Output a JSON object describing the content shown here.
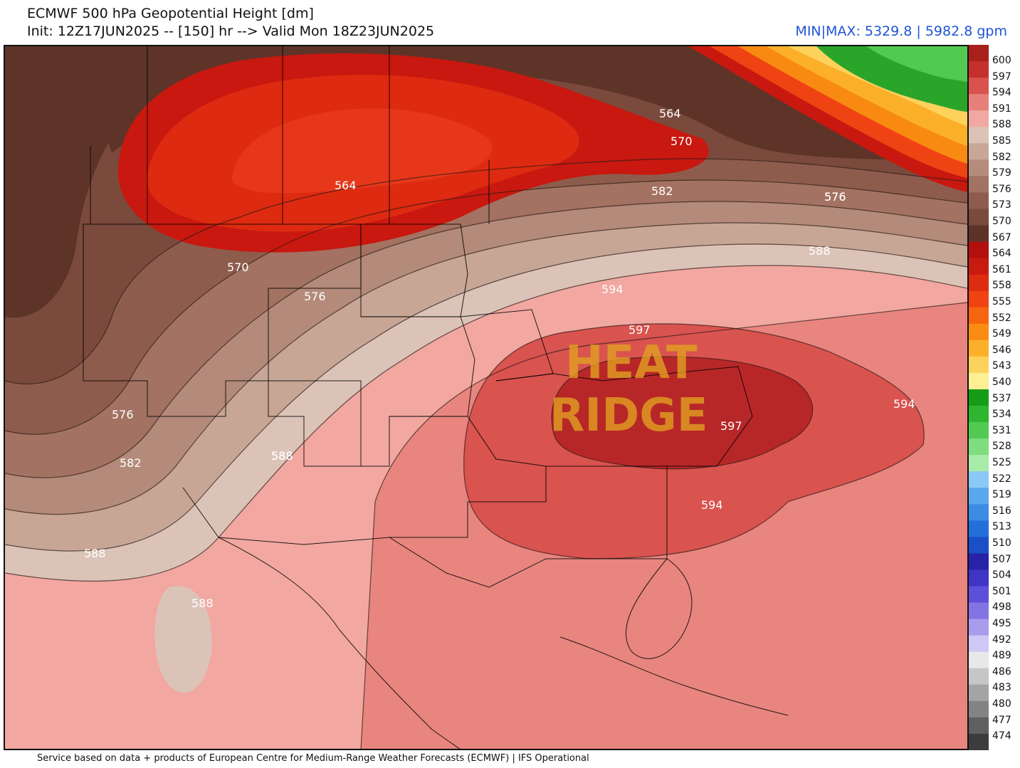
{
  "header": {
    "title": "ECMWF 500 hPa Geopotential Height [dm]",
    "subtitle": "Init: 12Z17JUN2025 -- [150] hr --> Valid Mon 18Z23JUN2025",
    "minmax": "MIN|MAX: 5329.8 | 5982.8 gpm"
  },
  "footer": "Service based on data + products of European Centre for Medium-Range Weather Forecasts (ECMWF) | IFS Operational",
  "overlay": {
    "line1": "HEAT",
    "line2": "RIDGE"
  },
  "colorbar": {
    "labels": [
      "600",
      "597",
      "594",
      "591",
      "588",
      "585",
      "582",
      "579",
      "576",
      "573",
      "570",
      "567",
      "564",
      "561",
      "558",
      "555",
      "552",
      "549",
      "546",
      "543",
      "540",
      "537",
      "534",
      "531",
      "528",
      "525",
      "522",
      "519",
      "516",
      "513",
      "510",
      "507",
      "504",
      "501",
      "498",
      "495",
      "492",
      "489",
      "486",
      "483",
      "480",
      "477",
      "474"
    ],
    "colors": [
      "#a8201c",
      "#c3302d",
      "#d8524e",
      "#e7807a",
      "#f1a8a2",
      "#dcc3b8",
      "#c8a797",
      "#b58b7b",
      "#a27262",
      "#8e5c4d",
      "#7a4a3c",
      "#5c3328",
      "#b30f0f",
      "#c81a10",
      "#dd2c10",
      "#f04313",
      "#f6650f",
      "#fa8c12",
      "#fcb02a",
      "#fdd25c",
      "#fdef94",
      "#169c16",
      "#2fb52f",
      "#52ca52",
      "#7edd7e",
      "#a9ecaa",
      "#8cc8f5",
      "#5aa8ee",
      "#3c8ce6",
      "#246fd9",
      "#1b4fc7",
      "#2822a6",
      "#3f34c4",
      "#5e4fd8",
      "#8474e3",
      "#a99cec",
      "#cfc7f5",
      "#e8e8e8",
      "#c6c6c6",
      "#a4a4a4",
      "#838383",
      "#5f5f5f",
      "#3c3c3c"
    ]
  },
  "contour_labels": [
    "564",
    "564",
    "570",
    "570",
    "576",
    "576",
    "582",
    "576",
    "582",
    "576",
    "588",
    "588",
    "588",
    "588",
    "588",
    "594",
    "597",
    "594",
    "597",
    "594"
  ],
  "map_colors": {
    "dm564": "#c8180f",
    "dm561": "#dd2a10",
    "dm567": "#5e3428",
    "dm570": "#7a4a3c",
    "dm573": "#8e5c4d",
    "dm576": "#a37262",
    "dm579": "#b48a7a",
    "dm582": "#c7a696",
    "dm585": "#dcc3b8",
    "dm588": "#f2a7a1",
    "dm591": "#e8857f",
    "dm594": "#d9534f",
    "dm597": "#b82728",
    "dm573_north": "#8d5b4b",
    "green": "#2aa52a",
    "orange": "#f88a12",
    "yellow": "#fdd25c"
  }
}
